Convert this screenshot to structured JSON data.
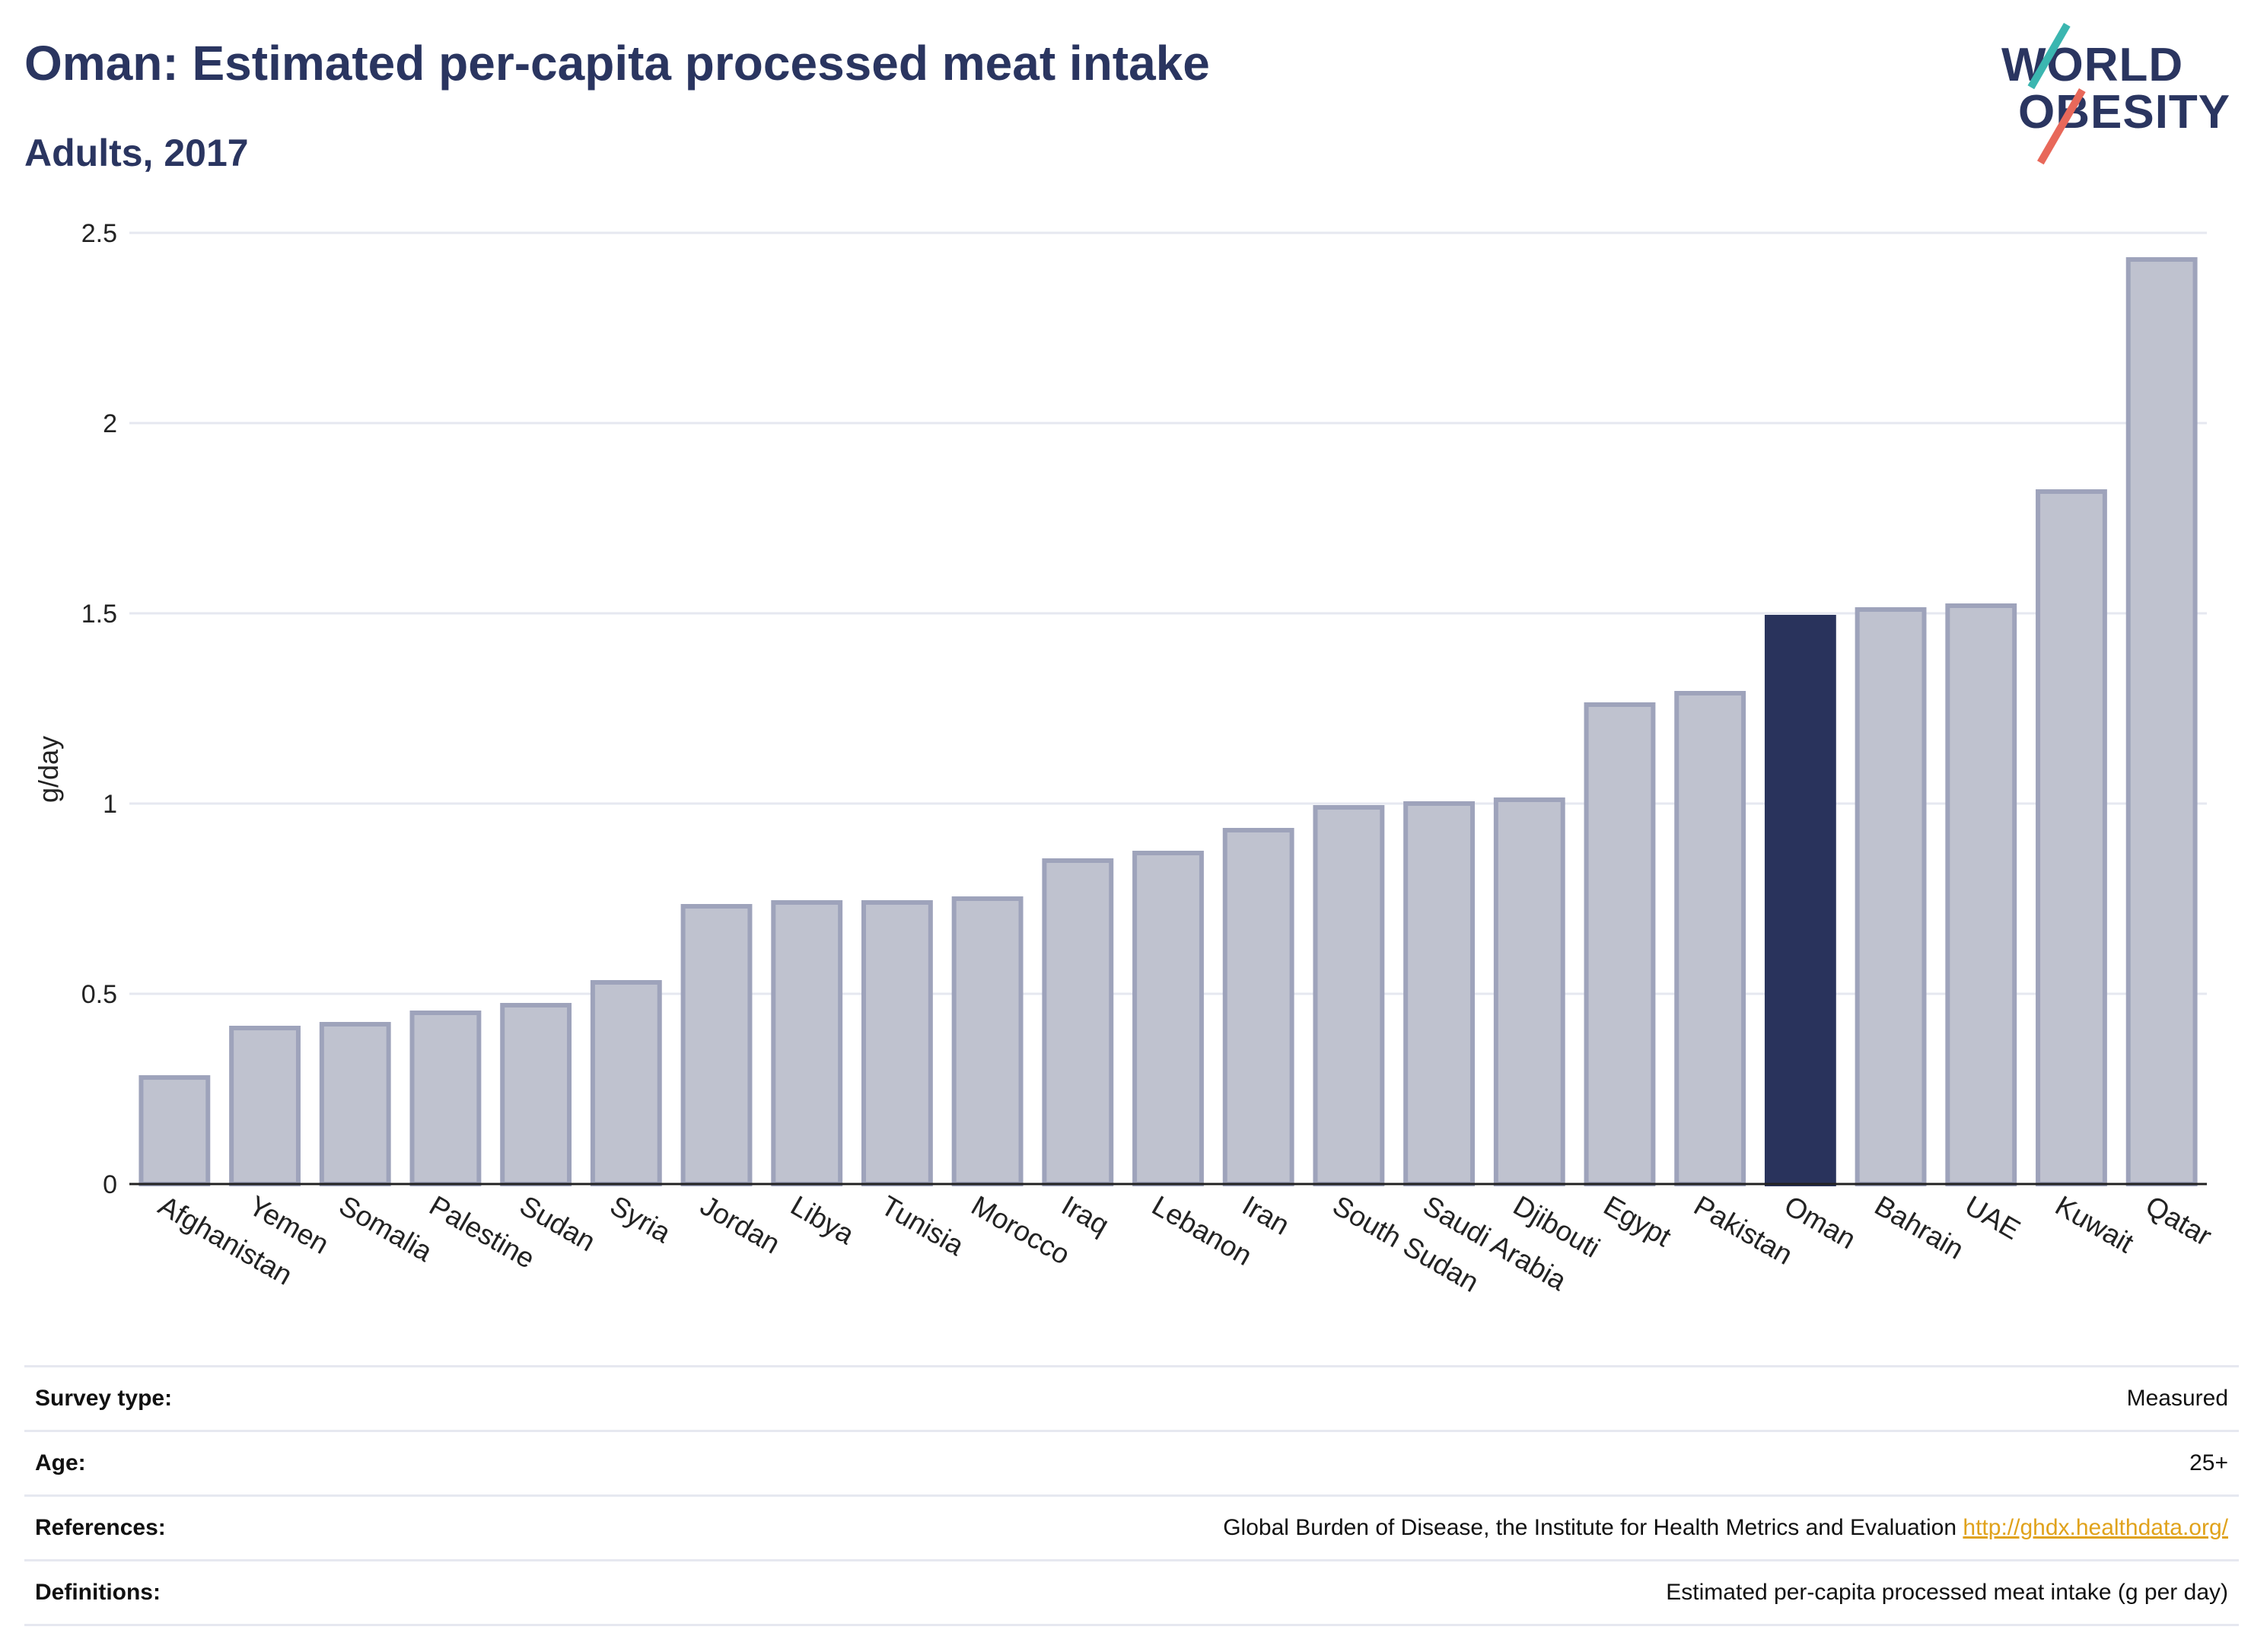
{
  "header": {
    "title": "Oman: Estimated per-capita processed meat intake",
    "subtitle": "Adults, 2017"
  },
  "logo": {
    "line1": "WORLD",
    "line2": "OBESITY"
  },
  "colors": {
    "highlight": "#29335c",
    "bar_fill": "#bfc2cf",
    "bar_stroke": "#9ea3bb",
    "grid": "#e6e8f0",
    "link": "#e0a21b"
  },
  "chart_data": {
    "type": "bar",
    "title": "Oman: Estimated per-capita processed meat intake",
    "subtitle": "Adults, 2017",
    "xlabel": "",
    "ylabel": "g/day",
    "ylim": [
      0,
      2.5
    ],
    "yticks": [
      0,
      0.5,
      1,
      1.5,
      2,
      2.5
    ],
    "ytick_labels": [
      "0",
      "0.5",
      "1",
      "1.5",
      "2",
      "2.5"
    ],
    "grid": true,
    "highlight": "Oman",
    "categories": [
      "Afghanistan",
      "Yemen",
      "Somalia",
      "Palestine",
      "Sudan",
      "Syria",
      "Jordan",
      "Libya",
      "Tunisia",
      "Morocco",
      "Iraq",
      "Lebanon",
      "Iran",
      "South Sudan",
      "Saudi Arabia",
      "Djibouti",
      "Egypt",
      "Pakistan",
      "Oman",
      "Bahrain",
      "UAE",
      "Kuwait",
      "Qatar"
    ],
    "values": [
      0.28,
      0.41,
      0.42,
      0.45,
      0.47,
      0.53,
      0.73,
      0.74,
      0.74,
      0.75,
      0.85,
      0.87,
      0.93,
      0.99,
      1.0,
      1.01,
      1.26,
      1.29,
      1.49,
      1.51,
      1.52,
      1.82,
      2.43
    ]
  },
  "info": {
    "rows": [
      {
        "key": "Survey type:",
        "value": "Measured"
      },
      {
        "key": "Age:",
        "value": "25+"
      },
      {
        "key": "References:",
        "value": "Global Burden of Disease, the Institute for Health Metrics and Evaluation",
        "link": "http://ghdx.healthdata.org/"
      },
      {
        "key": "Definitions:",
        "value": "Estimated per-capita processed meat intake (g per day)"
      }
    ]
  }
}
